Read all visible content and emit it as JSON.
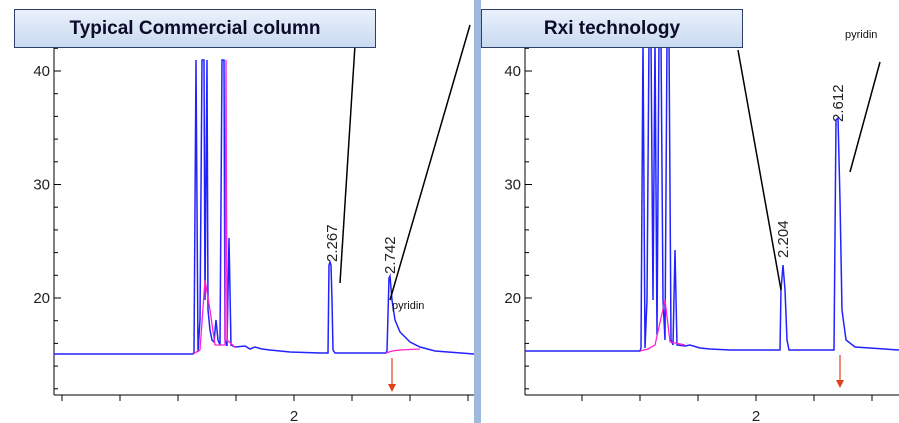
{
  "chart_data": [
    {
      "type": "line",
      "title": "Typical Commercial column",
      "y_ticks": [
        20,
        30,
        40
      ],
      "x_ticks": [
        2
      ],
      "peaks": [
        {
          "label": "2.267",
          "x": 2.267,
          "y": 23
        },
        {
          "label": "2.742",
          "x": 2.742,
          "y": 22
        }
      ],
      "annotations": [
        "pyridin"
      ],
      "series_colors": [
        "#2020ff",
        "#ff33cc"
      ],
      "grid": false
    },
    {
      "type": "line",
      "title": "Rxi technology",
      "y_ticks": [
        20,
        30,
        40
      ],
      "x_ticks": [
        2
      ],
      "peaks": [
        {
          "label": "2.204",
          "x": 2.204,
          "y": 23
        },
        {
          "label": "2.612",
          "x": 2.612,
          "y": 36
        }
      ],
      "annotations": [
        "pyridin"
      ],
      "series_colors": [
        "#2020ff",
        "#ff33cc"
      ],
      "grid": false
    }
  ]
}
